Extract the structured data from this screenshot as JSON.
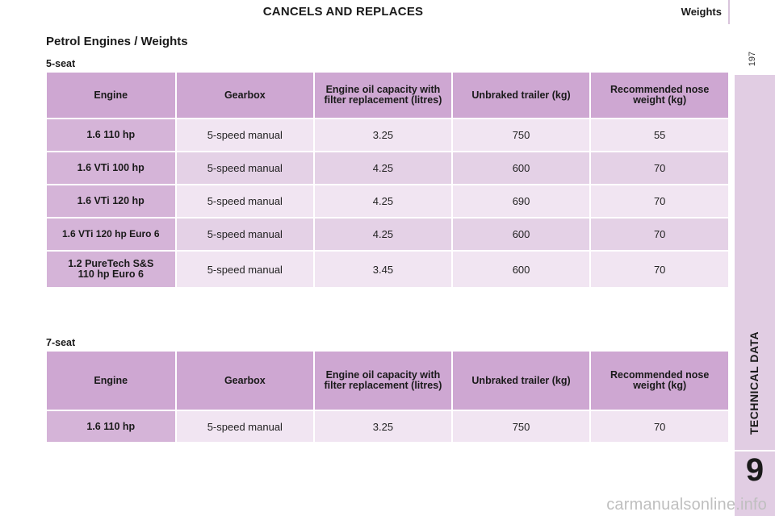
{
  "header": {
    "banner": "CANCELS AND REPLACES",
    "section": "Weights",
    "page_number": "197"
  },
  "side_tab": {
    "label": "TECHNICAL DATA",
    "chapter": "9"
  },
  "page_heading": "Petrol Engines / Weights",
  "columns": [
    "Engine",
    "Gearbox",
    "Engine oil capacity with filter replacement (litres)",
    "Unbraked trailer (kg)",
    "Recommended nose weight (kg)"
  ],
  "tables": [
    {
      "subheading": "5-seat",
      "rows": [
        {
          "engine": "1.6 110 hp",
          "gearbox": "5-speed manual",
          "oil": "3.25",
          "trailer": "750",
          "nose": "55"
        },
        {
          "engine": "1.6 VTi 100 hp",
          "gearbox": "5-speed manual",
          "oil": "4.25",
          "trailer": "600",
          "nose": "70"
        },
        {
          "engine": "1.6 VTi 120 hp",
          "gearbox": "5-speed manual",
          "oil": "4.25",
          "trailer": "690",
          "nose": "70"
        },
        {
          "engine": "1.6 VTi 120 hp Euro 6",
          "gearbox": "5-speed manual",
          "oil": "4.25",
          "trailer": "600",
          "nose": "70"
        },
        {
          "engine": "1.2 PureTech S&S 110 hp Euro 6",
          "gearbox": "5-speed manual",
          "oil": "3.45",
          "trailer": "600",
          "nose": "70"
        }
      ]
    },
    {
      "subheading": "7-seat",
      "rows": [
        {
          "engine": "1.6 110 hp",
          "gearbox": "5-speed manual",
          "oil": "3.25",
          "trailer": "750",
          "nose": "70"
        }
      ]
    }
  ],
  "watermark": "carmanualsonline.info",
  "colors": {
    "header_cell": "#cea7d2",
    "engine_cell": "#d5b4d8",
    "row_light": "#f1e5f2",
    "row_dark": "#e4d1e6",
    "side_tab": "#e1cde3"
  }
}
